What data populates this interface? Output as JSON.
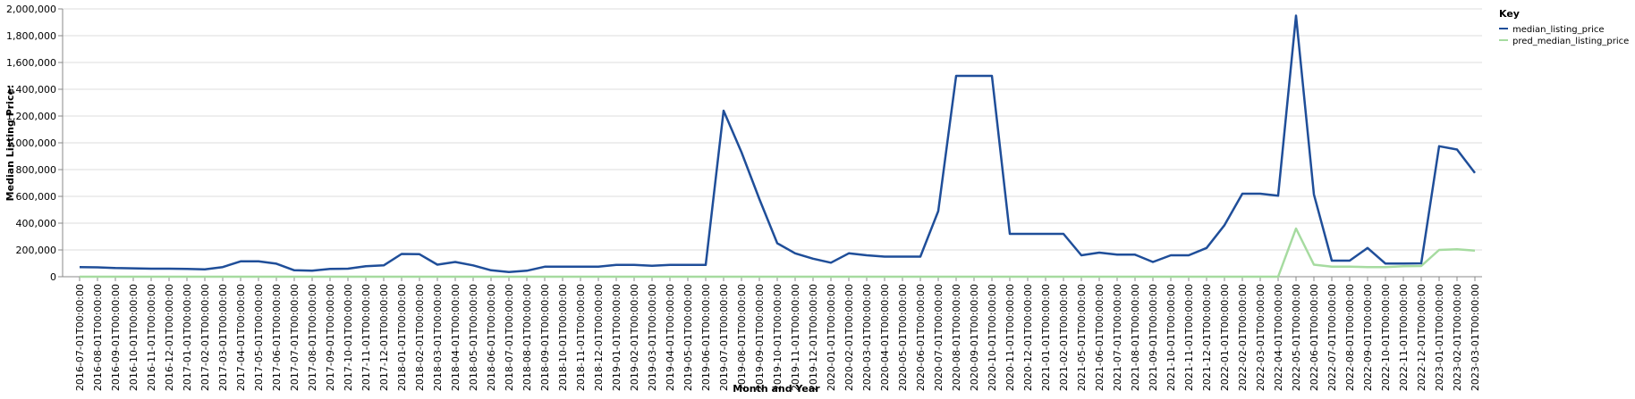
{
  "chart_data": {
    "type": "line",
    "title": "",
    "xlabel": "Month and Year",
    "ylabel": "Median Listing Price:",
    "ylim": [
      0,
      2000000
    ],
    "yticks": [
      0,
      200000,
      400000,
      600000,
      800000,
      1000000,
      1200000,
      1400000,
      1600000,
      1800000,
      2000000
    ],
    "ytick_labels": [
      "0",
      "200,000",
      "400,000",
      "600,000",
      "800,000",
      "1,000,000",
      "1,200,000",
      "1,400,000",
      "1,600,000",
      "1,800,000",
      "2,000,000"
    ],
    "grid": true,
    "legend": {
      "title": "Key",
      "position": "top-right"
    },
    "x": [
      "2016-07-01T00:00:00",
      "2016-08-01T00:00:00",
      "2016-09-01T00:00:00",
      "2016-10-01T00:00:00",
      "2016-11-01T00:00:00",
      "2016-12-01T00:00:00",
      "2017-01-01T00:00:00",
      "2017-02-01T00:00:00",
      "2017-03-01T00:00:00",
      "2017-04-01T00:00:00",
      "2017-05-01T00:00:00",
      "2017-06-01T00:00:00",
      "2017-07-01T00:00:00",
      "2017-08-01T00:00:00",
      "2017-09-01T00:00:00",
      "2017-10-01T00:00:00",
      "2017-11-01T00:00:00",
      "2017-12-01T00:00:00",
      "2018-01-01T00:00:00",
      "2018-02-01T00:00:00",
      "2018-03-01T00:00:00",
      "2018-04-01T00:00:00",
      "2018-05-01T00:00:00",
      "2018-06-01T00:00:00",
      "2018-07-01T00:00:00",
      "2018-08-01T00:00:00",
      "2018-09-01T00:00:00",
      "2018-10-01T00:00:00",
      "2018-11-01T00:00:00",
      "2018-12-01T00:00:00",
      "2019-01-01T00:00:00",
      "2019-02-01T00:00:00",
      "2019-03-01T00:00:00",
      "2019-04-01T00:00:00",
      "2019-05-01T00:00:00",
      "2019-06-01T00:00:00",
      "2019-07-01T00:00:00",
      "2019-08-01T00:00:00",
      "2019-09-01T00:00:00",
      "2019-10-01T00:00:00",
      "2019-11-01T00:00:00",
      "2019-12-01T00:00:00",
      "2020-01-01T00:00:00",
      "2020-02-01T00:00:00",
      "2020-03-01T00:00:00",
      "2020-04-01T00:00:00",
      "2020-05-01T00:00:00",
      "2020-06-01T00:00:00",
      "2020-07-01T00:00:00",
      "2020-08-01T00:00:00",
      "2020-09-01T00:00:00",
      "2020-10-01T00:00:00",
      "2020-11-01T00:00:00",
      "2020-12-01T00:00:00",
      "2021-01-01T00:00:00",
      "2021-02-01T00:00:00",
      "2021-05-01T00:00:00",
      "2021-06-01T00:00:00",
      "2021-07-01T00:00:00",
      "2021-08-01T00:00:00",
      "2021-09-01T00:00:00",
      "2021-10-01T00:00:00",
      "2021-11-01T00:00:00",
      "2021-12-01T00:00:00",
      "2022-01-01T00:00:00",
      "2022-02-01T00:00:00",
      "2022-03-01T00:00:00",
      "2022-04-01T00:00:00",
      "2022-05-01T00:00:00",
      "2022-06-01T00:00:00",
      "2022-07-01T00:00:00",
      "2022-08-01T00:00:00",
      "2022-09-01T00:00:00",
      "2022-10-01T00:00:00",
      "2022-11-01T00:00:00",
      "2022-12-01T00:00:00",
      "2023-01-01T00:00:00",
      "2023-02-01T00:00:00",
      "2023-03-01T00:00:00"
    ],
    "series": [
      {
        "name": "median_listing_price",
        "color": "#1f4e99",
        "values": [
          72000,
          70000,
          65000,
          63000,
          60000,
          60000,
          58000,
          55000,
          72000,
          115000,
          115000,
          97000,
          48000,
          45000,
          58000,
          60000,
          78000,
          85000,
          170000,
          168000,
          90000,
          110000,
          85000,
          48000,
          35000,
          45000,
          75000,
          75000,
          75000,
          75000,
          88000,
          88000,
          82000,
          88000,
          88000,
          88000,
          1240000,
          930000,
          580000,
          250000,
          175000,
          135000,
          105000,
          175000,
          160000,
          150000,
          150000,
          150000,
          490000,
          1500000,
          1500000,
          1500000,
          320000,
          320000,
          320000,
          320000,
          160000,
          180000,
          165000,
          165000,
          110000,
          160000,
          160000,
          215000,
          385000,
          620000,
          620000,
          605000,
          1950000,
          615000,
          120000,
          120000,
          215000,
          98000,
          98000,
          100000,
          975000,
          950000,
          775000
        ]
      },
      {
        "name": "pred_median_listing_price",
        "color": "#a6dba0",
        "values": [
          0,
          0,
          0,
          0,
          0,
          0,
          0,
          0,
          0,
          0,
          0,
          0,
          0,
          0,
          0,
          0,
          0,
          0,
          0,
          0,
          0,
          0,
          0,
          0,
          0,
          0,
          0,
          0,
          0,
          0,
          0,
          0,
          0,
          0,
          0,
          0,
          0,
          0,
          0,
          0,
          0,
          0,
          0,
          0,
          0,
          0,
          0,
          0,
          0,
          0,
          0,
          0,
          0,
          0,
          0,
          0,
          0,
          0,
          0,
          0,
          0,
          0,
          0,
          0,
          0,
          0,
          0,
          0,
          360000,
          90000,
          75000,
          75000,
          72000,
          72000,
          78000,
          80000,
          200000,
          205000,
          195000
        ]
      }
    ]
  }
}
